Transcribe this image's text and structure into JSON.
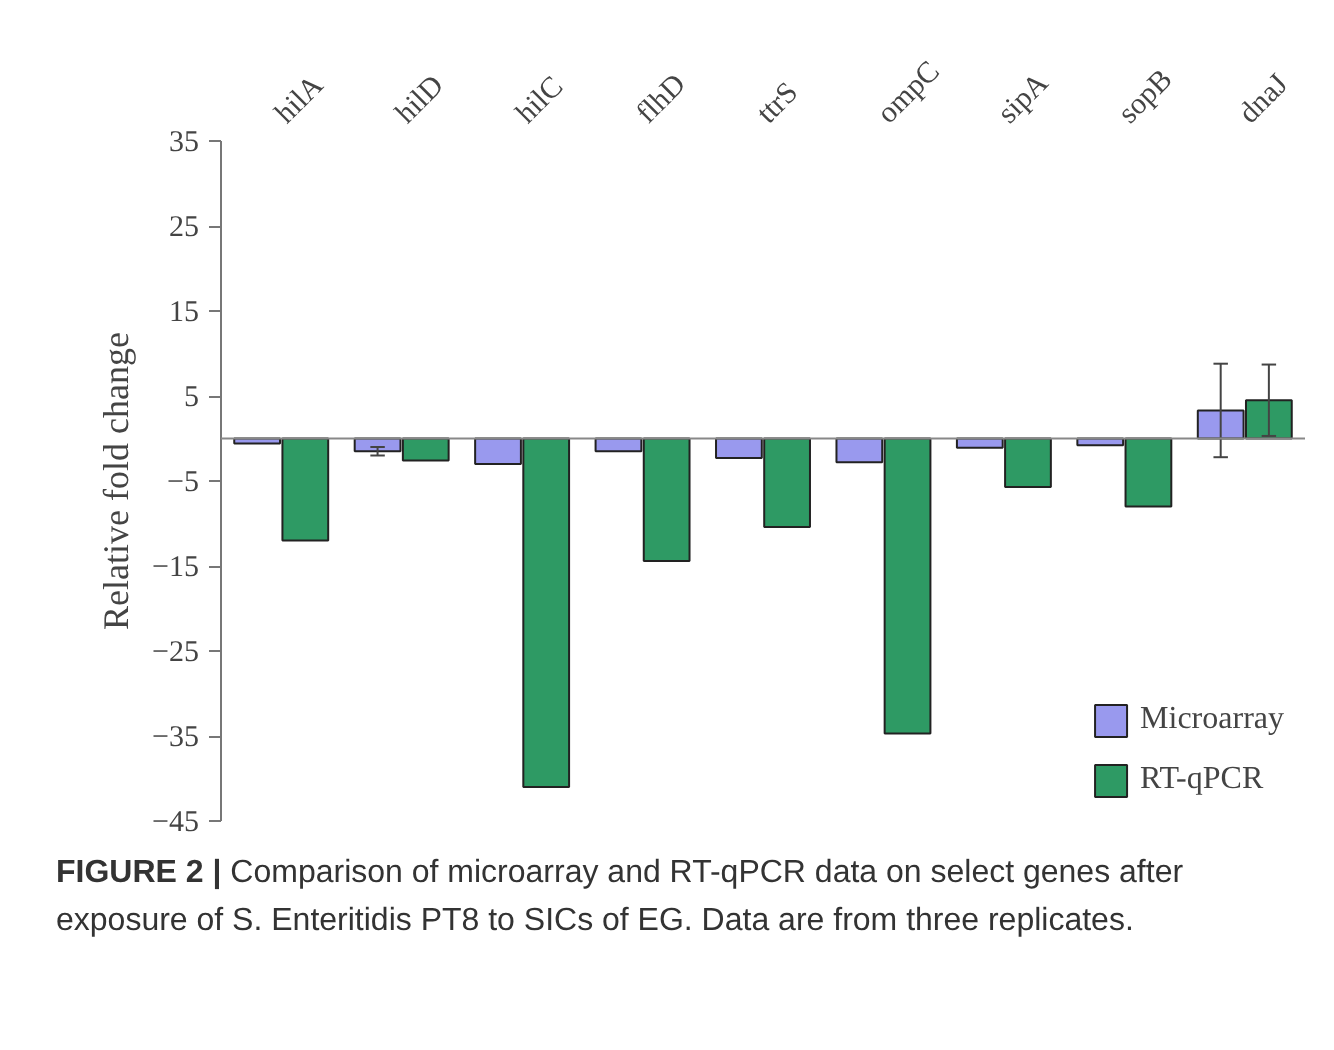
{
  "chart_data": {
    "type": "bar",
    "ylabel": "Relative fold change",
    "categories": [
      "hilA",
      "hilD",
      "hilC",
      "flhD",
      "ttrS",
      "ompC",
      "sipA",
      "sopB",
      "dnaJ"
    ],
    "series": [
      {
        "name": "Microarray",
        "color": "#9999ee",
        "values": [
          -0.6,
          -1.5,
          -3.0,
          -1.5,
          -2.3,
          -2.8,
          -1.1,
          -0.8,
          3.3
        ],
        "errors": [
          null,
          0.5,
          null,
          null,
          null,
          null,
          null,
          null,
          5.5
        ]
      },
      {
        "name": "RT-qPCR",
        "color": "#2e9a64",
        "values": [
          -12.0,
          -2.6,
          -41,
          -14.4,
          -10.4,
          -34.7,
          -5.7,
          -8.0,
          4.5
        ],
        "errors": [
          null,
          null,
          null,
          null,
          null,
          null,
          null,
          null,
          4.2
        ]
      }
    ],
    "ylim": [
      -45,
      35
    ],
    "yticks": [
      -45,
      -35,
      -25,
      -15,
      -5,
      5,
      15,
      25,
      35
    ],
    "ref_lines": [
      {
        "axis": "y",
        "value": 0,
        "color": "#888888"
      }
    ],
    "grid": false,
    "legend": "bottom right",
    "annotations": [
      "FIGURE 2 |",
      "Comparison of microarray and RT-qPCR data on select genes after exposure of S. Enteritidis PT8 to SICs of EG. Data are from three replicates."
    ]
  }
}
